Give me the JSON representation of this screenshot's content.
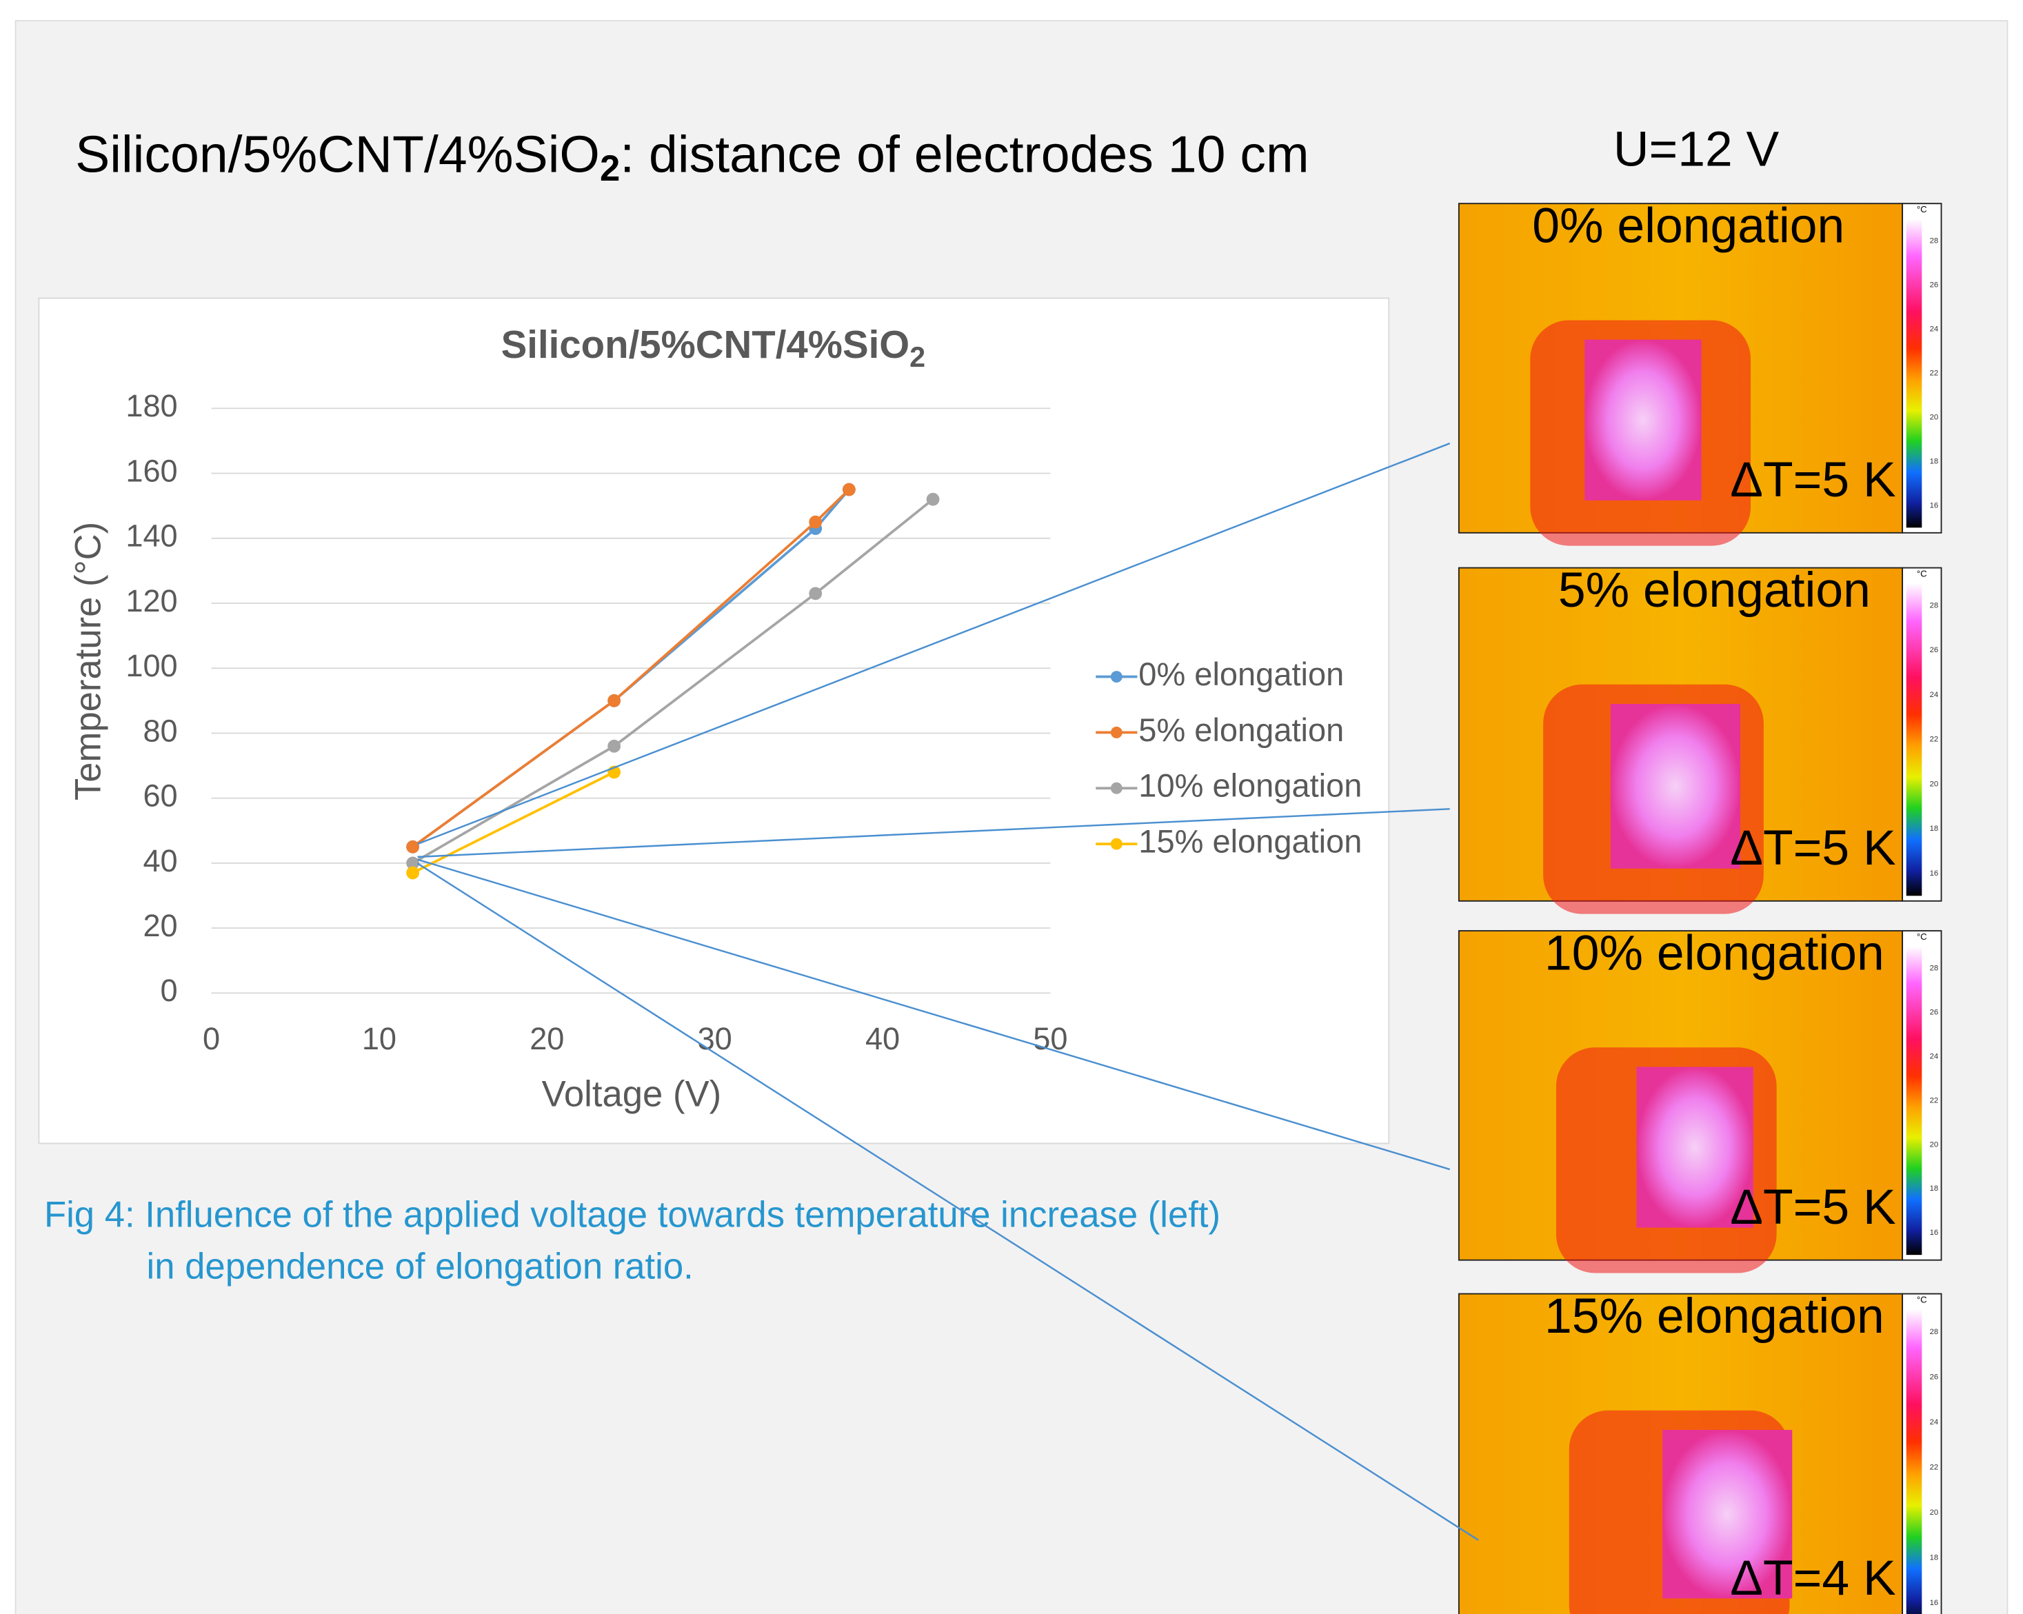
{
  "slide": {
    "title": {
      "pre": "Silicon/5%CNT/4%SiO",
      "sub": "2",
      "post": ": distance of electrodes 10 cm"
    },
    "voltage": "U=12 V",
    "caption": [
      "Fig 4: Influence of the applied voltage towards temperature increase (left)",
      "in dependence of elongation ratio."
    ],
    "images": [
      {
        "label": "0% elongation",
        "delta": "ΔT=5 K"
      },
      {
        "label": "5% elongation",
        "delta": "ΔT=5 K"
      },
      {
        "label": "10% elongation",
        "delta": "ΔT=5 K"
      },
      {
        "label": "15% elongation",
        "delta": "ΔT=4 K"
      }
    ],
    "colorbar": {
      "unit": "°C",
      "lim": [
        15,
        29
      ],
      "ticks": [
        28,
        26,
        24,
        22,
        20,
        18,
        16
      ]
    }
  },
  "chart_data": {
    "type": "line",
    "title": "Silicon/5%CNT/4%SiO",
    "title_sub": "2",
    "x_label": "Voltage (V)",
    "y_label": "Temperature (°C)",
    "xlim": [
      0,
      50
    ],
    "xticks": [
      0,
      10,
      20,
      30,
      40,
      50
    ],
    "ylim": [
      0,
      180
    ],
    "yticks": [
      0,
      20,
      40,
      60,
      80,
      100,
      120,
      140,
      160,
      180
    ],
    "grid": true,
    "legend": "right",
    "series": [
      {
        "name": "0% elongation",
        "color": "#5b9bd5",
        "x": [
          12,
          24,
          36,
          38
        ],
        "values": [
          45,
          90,
          143,
          155
        ]
      },
      {
        "name": "5% elongation",
        "color": "#ed7d31",
        "x": [
          12,
          24,
          36,
          38
        ],
        "values": [
          45,
          90,
          145,
          155
        ]
      },
      {
        "name": "10% elongation",
        "color": "#a5a5a5",
        "x": [
          12,
          24,
          36,
          43
        ],
        "values": [
          40,
          76,
          123,
          152
        ]
      },
      {
        "name": "15% elongation",
        "color": "#ffc000",
        "x": [
          12,
          24
        ],
        "values": [
          37,
          68
        ]
      }
    ]
  }
}
